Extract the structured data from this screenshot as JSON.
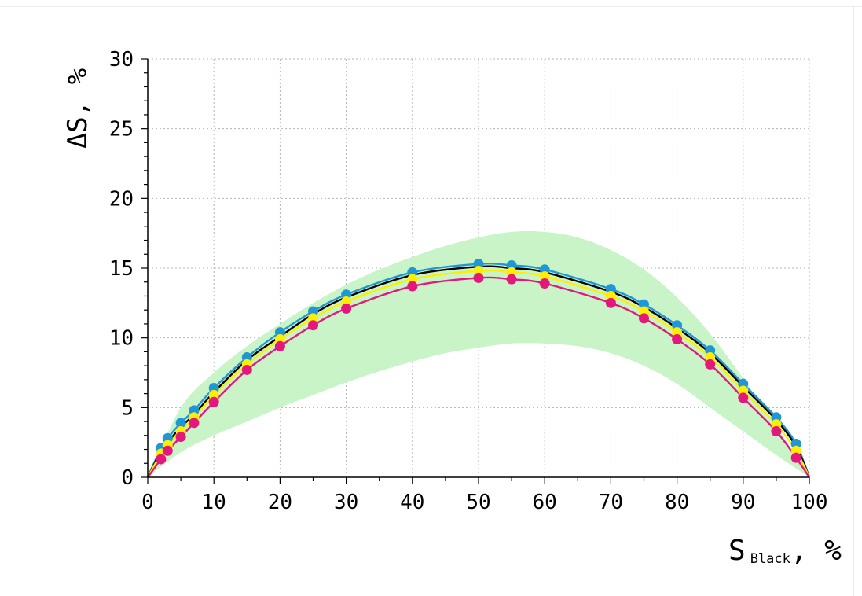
{
  "colors": {
    "band": "#c8f4c8",
    "black": "#000000",
    "cyan": "#1f97d6",
    "yellow": "#ffee00",
    "magenta": "#e3177c",
    "grid": "#b4b4b4"
  },
  "chart_data": {
    "type": "line",
    "xlabel": {
      "main": "S",
      "sub": "Black",
      "suffix": ", %"
    },
    "ylabel": "ΔS, %",
    "xlim": [
      0,
      100
    ],
    "ylim": [
      0,
      30
    ],
    "xticks": [
      0,
      10,
      20,
      30,
      40,
      50,
      60,
      70,
      80,
      90,
      100
    ],
    "yticks": [
      0,
      5,
      10,
      15,
      20,
      25,
      30
    ],
    "grid": true,
    "tolerance_band": {
      "x": [
        0,
        5,
        10,
        15,
        20,
        25,
        30,
        35,
        40,
        45,
        50,
        55,
        60,
        65,
        70,
        75,
        80,
        85,
        90,
        95,
        100
      ],
      "upper": [
        0,
        5.0,
        7.5,
        9.4,
        11.0,
        12.5,
        13.8,
        14.9,
        15.8,
        16.6,
        17.2,
        17.6,
        17.6,
        17.2,
        16.3,
        14.9,
        12.9,
        10.3,
        7.1,
        3.7,
        0
      ],
      "lower": [
        0,
        1.8,
        3.0,
        4.0,
        5.0,
        5.9,
        6.8,
        7.6,
        8.3,
        8.9,
        9.3,
        9.6,
        9.6,
        9.4,
        8.9,
        8.0,
        6.7,
        5.0,
        3.3,
        1.6,
        0
      ]
    },
    "series": [
      {
        "color": "cyan",
        "x": [
          2,
          3,
          5,
          7,
          10,
          15,
          20,
          25,
          30,
          40,
          50,
          55,
          60,
          70,
          75,
          80,
          85,
          90,
          95,
          98
        ],
        "values": [
          2.1,
          2.8,
          3.9,
          4.8,
          6.4,
          8.6,
          10.4,
          11.9,
          13.1,
          14.7,
          15.3,
          15.2,
          14.9,
          13.5,
          12.4,
          10.9,
          9.1,
          6.7,
          4.3,
          2.4
        ]
      },
      {
        "color": "black",
        "x": [
          2,
          3,
          5,
          7,
          10,
          15,
          20,
          25,
          30,
          40,
          50,
          55,
          60,
          70,
          75,
          80,
          85,
          90,
          95,
          98
        ],
        "values": [
          1.9,
          2.5,
          3.6,
          4.5,
          6.1,
          8.4,
          10.1,
          11.7,
          12.9,
          14.5,
          15.1,
          15.0,
          14.7,
          13.3,
          12.2,
          10.7,
          8.9,
          6.5,
          4.1,
          2.2
        ]
      },
      {
        "color": "yellow",
        "x": [
          2,
          3,
          5,
          7,
          10,
          15,
          20,
          25,
          30,
          40,
          50,
          55,
          60,
          70,
          75,
          80,
          85,
          90,
          95,
          98
        ],
        "values": [
          1.7,
          2.3,
          3.3,
          4.3,
          5.9,
          8.1,
          9.9,
          11.4,
          12.6,
          14.2,
          14.8,
          14.7,
          14.4,
          13.0,
          11.9,
          10.4,
          8.6,
          6.2,
          3.8,
          1.9
        ]
      },
      {
        "color": "magenta",
        "x": [
          2,
          3,
          5,
          7,
          10,
          15,
          20,
          25,
          30,
          40,
          50,
          55,
          60,
          70,
          75,
          80,
          85,
          90,
          95,
          98
        ],
        "values": [
          1.3,
          1.9,
          2.9,
          3.9,
          5.4,
          7.7,
          9.4,
          10.9,
          12.1,
          13.7,
          14.3,
          14.2,
          13.9,
          12.5,
          11.4,
          9.9,
          8.1,
          5.7,
          3.3,
          1.4
        ]
      }
    ]
  }
}
